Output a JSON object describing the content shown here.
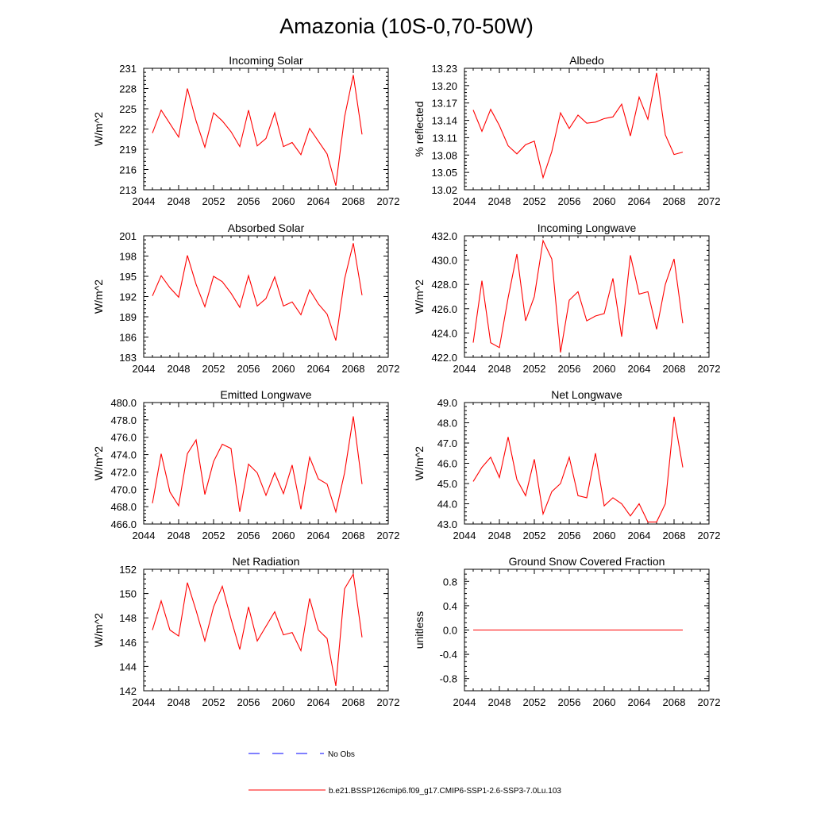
{
  "title": "Amazonia (10S-0,70-50W)",
  "x_years": [
    2045,
    2046,
    2047,
    2048,
    2049,
    2050,
    2051,
    2052,
    2053,
    2054,
    2055,
    2056,
    2057,
    2058,
    2059,
    2060,
    2061,
    2062,
    2063,
    2064,
    2065,
    2066,
    2067,
    2068,
    2069
  ],
  "x_ticks": [
    "2044",
    "2048",
    "2052",
    "2056",
    "2060",
    "2064",
    "2068",
    "2072"
  ],
  "x_tick_values": [
    2044,
    2048,
    2052,
    2056,
    2060,
    2064,
    2068,
    2072
  ],
  "xlim": [
    2044,
    2072
  ],
  "line_color": "#ff0000",
  "obs_color": "#0000ff",
  "legend": {
    "obs_label": "No Obs",
    "model_label": "b.e21.BSSP126cmip6.f09_g17.CMIP6-SSP1-2.6-SSP3-7.0Lu.103"
  },
  "chart_data": [
    {
      "type": "line",
      "title": "Incoming Solar",
      "ylabel": "W/m^2",
      "ylim": [
        213,
        231
      ],
      "y_ticks": [
        "213",
        "216",
        "219",
        "222",
        "225",
        "228",
        "231"
      ],
      "y_tick_values": [
        213,
        216,
        219,
        222,
        225,
        228,
        231
      ],
      "values": [
        221.4,
        224.8,
        222.8,
        220.8,
        228.0,
        223.2,
        219.3,
        224.4,
        223.2,
        221.6,
        219.4,
        224.8,
        219.5,
        220.6,
        224.4,
        219.4,
        220.0,
        218.2,
        222.1,
        220.2,
        218.3,
        213.6,
        223.8,
        230.0,
        221.2
      ]
    },
    {
      "type": "line",
      "title": "Albedo",
      "ylabel": "% reflected",
      "ylim": [
        13.02,
        13.23
      ],
      "y_ticks": [
        "13.02",
        "13.05",
        "13.08",
        "13.11",
        "13.14",
        "13.17",
        "13.20",
        "13.23"
      ],
      "y_tick_values": [
        13.02,
        13.05,
        13.08,
        13.11,
        13.14,
        13.17,
        13.2,
        13.23
      ],
      "values": [
        13.158,
        13.121,
        13.159,
        13.131,
        13.096,
        13.082,
        13.098,
        13.104,
        13.041,
        13.086,
        13.153,
        13.126,
        13.149,
        13.135,
        13.137,
        13.143,
        13.146,
        13.168,
        13.113,
        13.18,
        13.142,
        13.222,
        13.115,
        13.081,
        13.085
      ]
    },
    {
      "type": "line",
      "title": "Absorbed Solar",
      "ylabel": "W/m^2",
      "ylim": [
        183,
        201
      ],
      "y_ticks": [
        "183",
        "186",
        "189",
        "192",
        "195",
        "198",
        "201"
      ],
      "y_tick_values": [
        183,
        186,
        189,
        192,
        195,
        198,
        201
      ],
      "values": [
        192.1,
        195.1,
        193.3,
        191.9,
        198.1,
        193.8,
        190.5,
        195.0,
        194.2,
        192.5,
        190.4,
        195.1,
        190.6,
        191.7,
        194.9,
        190.6,
        191.2,
        189.3,
        193.0,
        190.9,
        189.4,
        185.5,
        194.6,
        199.9,
        192.2
      ]
    },
    {
      "type": "line",
      "title": "Incoming Longwave",
      "ylabel": "W/m^2",
      "ylim": [
        422.0,
        432.0
      ],
      "y_ticks": [
        "422.0",
        "424.0",
        "426.0",
        "428.0",
        "430.0",
        "432.0"
      ],
      "y_tick_values": [
        422,
        424,
        426,
        428,
        430,
        432
      ],
      "values": [
        423.2,
        428.3,
        423.2,
        422.8,
        426.9,
        430.5,
        425.0,
        427.0,
        431.6,
        430.1,
        422.4,
        426.7,
        427.4,
        425.0,
        425.4,
        425.6,
        428.5,
        423.7,
        430.4,
        427.2,
        427.4,
        424.3,
        428.0,
        430.1,
        424.8
      ]
    },
    {
      "type": "line",
      "title": "Emitted Longwave",
      "ylabel": "W/m^2",
      "ylim": [
        466.0,
        480.0
      ],
      "y_ticks": [
        "466.0",
        "468.0",
        "470.0",
        "472.0",
        "474.0",
        "476.0",
        "478.0",
        "480.0"
      ],
      "y_tick_values": [
        466,
        468,
        470,
        472,
        474,
        476,
        478,
        480
      ],
      "values": [
        468.4,
        474.1,
        469.7,
        468.1,
        474.1,
        475.7,
        469.4,
        473.2,
        475.2,
        474.7,
        467.4,
        472.9,
        471.9,
        469.3,
        471.9,
        469.5,
        472.8,
        467.7,
        473.7,
        471.2,
        470.6,
        467.4,
        471.9,
        478.4,
        470.6
      ]
    },
    {
      "type": "line",
      "title": "Net Longwave",
      "ylabel": "W/m^2",
      "ylim": [
        43.0,
        49.0
      ],
      "y_ticks": [
        "43.0",
        "44.0",
        "45.0",
        "46.0",
        "47.0",
        "48.0",
        "49.0"
      ],
      "y_tick_values": [
        43,
        44,
        45,
        46,
        47,
        48,
        49
      ],
      "values": [
        45.1,
        45.8,
        46.3,
        45.3,
        47.3,
        45.2,
        44.4,
        46.2,
        43.5,
        44.6,
        45.0,
        46.3,
        44.4,
        44.3,
        46.5,
        43.9,
        44.3,
        44.0,
        43.4,
        44.0,
        43.1,
        43.1,
        44.0,
        48.3,
        45.8
      ]
    },
    {
      "type": "line",
      "title": "Net Radiation",
      "ylabel": "W/m^2",
      "ylim": [
        142,
        152
      ],
      "y_ticks": [
        "142",
        "144",
        "146",
        "148",
        "150",
        "152"
      ],
      "y_tick_values": [
        142,
        144,
        146,
        148,
        150,
        152
      ],
      "values": [
        147.0,
        149.4,
        147.0,
        146.5,
        150.9,
        148.6,
        146.1,
        148.9,
        150.6,
        147.9,
        145.4,
        148.9,
        146.1,
        147.3,
        148.5,
        146.6,
        146.8,
        145.3,
        149.6,
        147.0,
        146.3,
        142.4,
        150.4,
        151.6,
        146.4
      ]
    },
    {
      "type": "line",
      "title": "Ground Snow Covered Fraction",
      "ylabel": "unitless",
      "ylim": [
        -1.0,
        1.0
      ],
      "y_ticks": [
        "-0.8",
        "-0.4",
        "0.0",
        "0.4",
        "0.8"
      ],
      "y_tick_values": [
        -0.8,
        -0.4,
        0.0,
        0.4,
        0.8
      ],
      "values": [
        0,
        0,
        0,
        0,
        0,
        0,
        0,
        0,
        0,
        0,
        0,
        0,
        0,
        0,
        0,
        0,
        0,
        0,
        0,
        0,
        0,
        0,
        0,
        0,
        0
      ]
    }
  ]
}
